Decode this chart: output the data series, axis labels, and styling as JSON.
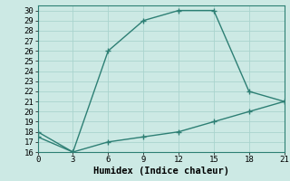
{
  "line1_x": [
    0,
    3,
    6,
    9,
    12,
    15,
    18,
    21
  ],
  "line1_y": [
    18,
    16,
    26,
    29,
    30,
    30,
    22,
    21
  ],
  "line2_x": [
    0,
    3,
    6,
    9,
    12,
    15,
    18,
    21
  ],
  "line2_y": [
    17.5,
    16,
    17,
    17.5,
    18,
    19,
    20,
    21
  ],
  "line_color": "#2d7f74",
  "bg_color": "#cce9e4",
  "grid_color": "#aad4ce",
  "xlabel": "Humidex (Indice chaleur)",
  "xlim": [
    0,
    21
  ],
  "ylim": [
    16,
    30.5
  ],
  "xticks": [
    0,
    3,
    6,
    9,
    12,
    15,
    18,
    21
  ],
  "yticks": [
    16,
    17,
    18,
    19,
    20,
    21,
    22,
    23,
    24,
    25,
    26,
    27,
    28,
    29,
    30
  ],
  "tick_font_size": 6.5,
  "xlabel_font_size": 7.5,
  "marker": "+",
  "markersize": 4,
  "linewidth": 1.0
}
